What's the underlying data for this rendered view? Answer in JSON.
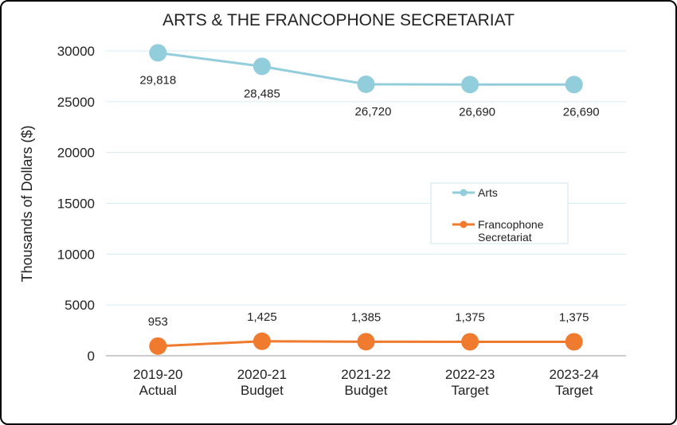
{
  "chart_data": {
    "type": "line",
    "title": "ARTS & THE FRANCOPHONE SECRETARIAT",
    "xlabel": "",
    "ylabel": "Thousands of Dollars ($)",
    "categories": [
      [
        "2019-20",
        "Actual"
      ],
      [
        "2020-21",
        "Budget"
      ],
      [
        "2021-22",
        "Budget"
      ],
      [
        "2022-23",
        "Target"
      ],
      [
        "2023-24",
        "Target"
      ]
    ],
    "ylim": [
      0,
      30000
    ],
    "yticks": [
      "0",
      "5000",
      "10000",
      "15000",
      "20000",
      "25000",
      "30000"
    ],
    "grid": true,
    "legend_position": "center-right",
    "series": [
      {
        "name": "Arts",
        "color": "#92cddc",
        "values": [
          29818,
          28485,
          26720,
          26690,
          26690
        ],
        "labels": [
          "29,818",
          "28,485",
          "26,720",
          "26,690",
          "26,690"
        ],
        "label_position": "below"
      },
      {
        "name": "Francophone Secretariat",
        "color": "#f07a2e",
        "values": [
          953,
          1425,
          1385,
          1375,
          1375
        ],
        "labels": [
          "953",
          "1,425",
          "1,385",
          "1,375",
          "1,375"
        ],
        "label_position": "above"
      }
    ]
  }
}
